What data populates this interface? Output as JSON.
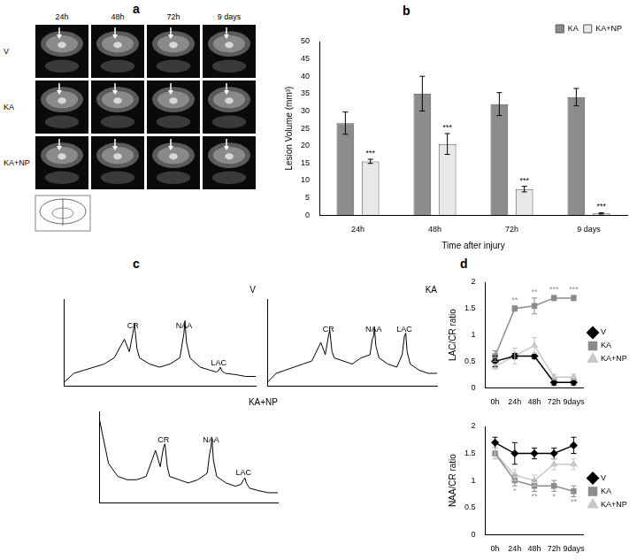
{
  "panel_labels": [
    "a",
    "b",
    "c",
    "d"
  ],
  "panel_a": {
    "columns": [
      "24h",
      "48h",
      "72h",
      "9 days"
    ],
    "rows": [
      "V",
      "KA",
      "KA+NP"
    ]
  },
  "chart_data": [
    {
      "type": "bar",
      "categories": [
        "24h",
        "48h",
        "72h",
        "9 days"
      ],
      "series": [
        {
          "name": "KA",
          "color": "#8c8c8c",
          "values": [
            26.5,
            35,
            32,
            34
          ],
          "errors": [
            3.2,
            5,
            3.3,
            2.5
          ]
        },
        {
          "name": "KA+NP",
          "color": "#e8e8e8",
          "values": [
            15.5,
            20.5,
            7.5,
            0.5
          ],
          "errors": [
            0.6,
            3,
            0.8,
            0.2
          ]
        }
      ],
      "x_label": "Time after injury",
      "y_label": "Lesion Volume (mm³)",
      "ylim": [
        0,
        50
      ],
      "yticks": [
        0,
        5,
        10,
        15,
        20,
        25,
        30,
        35,
        40,
        45,
        50
      ],
      "grid": false,
      "legend": "upper right",
      "annotations": [
        {
          "category": "24h",
          "series": "KA+NP",
          "text": "***",
          "position": "above"
        },
        {
          "category": "48h",
          "series": "KA+NP",
          "text": "***",
          "position": "above"
        },
        {
          "category": "72h",
          "series": "KA+NP",
          "text": "***",
          "position": "above"
        },
        {
          "category": "9 days",
          "series": "KA+NP",
          "text": "***",
          "position": "above"
        }
      ]
    },
    {
      "type": "line",
      "title": "V",
      "tick_labels": false,
      "x": [
        4.4,
        4.2,
        4.0,
        3.8,
        3.6,
        3.4,
        3.2,
        3.1,
        3.03,
        3.0,
        2.95,
        2.9,
        2.7,
        2.5,
        2.3,
        2.1,
        2.05,
        2.02,
        2.0,
        1.97,
        1.9,
        1.7,
        1.5,
        1.38,
        1.33,
        1.3,
        1.27,
        1.2,
        1.0,
        0.8,
        0.6
      ],
      "values": [
        0.05,
        0.2,
        0.25,
        0.3,
        0.35,
        0.45,
        0.75,
        0.55,
        0.85,
        1.0,
        0.6,
        0.45,
        0.35,
        0.3,
        0.35,
        0.45,
        0.7,
        0.85,
        1.05,
        0.7,
        0.45,
        0.3,
        0.25,
        0.22,
        0.25,
        0.3,
        0.24,
        0.2,
        0.18,
        0.15,
        0.15
      ],
      "color": "#000000",
      "xlim": [
        0.6,
        4.4
      ],
      "ylim": [
        0,
        1.4
      ],
      "grid": false,
      "annotations": [
        {
          "x": 3.03,
          "text": "CR"
        },
        {
          "x": 2.02,
          "text": "NAA"
        },
        {
          "x": 1.33,
          "text": "LAC"
        }
      ]
    },
    {
      "type": "line",
      "title": "KA",
      "tick_labels": false,
      "x": [
        4.4,
        4.2,
        4.0,
        3.8,
        3.6,
        3.4,
        3.2,
        3.1,
        3.03,
        3.0,
        2.95,
        2.9,
        2.7,
        2.5,
        2.3,
        2.1,
        2.05,
        2.02,
        2.0,
        1.97,
        1.9,
        1.7,
        1.5,
        1.38,
        1.33,
        1.3,
        1.27,
        1.2,
        1.0,
        0.8,
        0.6
      ],
      "values": [
        0.05,
        0.2,
        0.25,
        0.3,
        0.35,
        0.4,
        0.7,
        0.5,
        0.8,
        0.9,
        0.55,
        0.45,
        0.4,
        0.35,
        0.45,
        0.5,
        0.75,
        0.8,
        0.95,
        0.65,
        0.45,
        0.35,
        0.3,
        0.5,
        0.8,
        0.85,
        0.55,
        0.35,
        0.25,
        0.2,
        0.2
      ],
      "color": "#000000",
      "xlim": [
        0.6,
        4.4
      ],
      "ylim": [
        0,
        1.4
      ],
      "grid": false,
      "annotations": [
        {
          "x": 3.03,
          "text": "CR"
        },
        {
          "x": 2.02,
          "text": "NAA"
        },
        {
          "x": 1.33,
          "text": "LAC"
        }
      ]
    },
    {
      "type": "line",
      "title": "KA+NP",
      "tick_labels": false,
      "x": [
        4.4,
        4.2,
        4.0,
        3.8,
        3.6,
        3.4,
        3.2,
        3.1,
        3.03,
        3.0,
        2.95,
        2.9,
        2.7,
        2.5,
        2.3,
        2.1,
        2.05,
        2.02,
        2.0,
        1.97,
        1.9,
        1.7,
        1.5,
        1.38,
        1.33,
        1.3,
        1.27,
        1.2,
        1.0,
        0.8,
        0.6
      ],
      "values": [
        1.3,
        0.6,
        0.4,
        0.35,
        0.35,
        0.4,
        0.8,
        0.55,
        0.85,
        0.9,
        0.55,
        0.4,
        0.35,
        0.3,
        0.35,
        0.45,
        0.75,
        0.85,
        1.0,
        0.65,
        0.4,
        0.3,
        0.25,
        0.28,
        0.35,
        0.38,
        0.3,
        0.22,
        0.18,
        0.15,
        0.15
      ],
      "color": "#000000",
      "xlim": [
        0.6,
        4.4
      ],
      "ylim": [
        0,
        1.4
      ],
      "grid": false,
      "annotations": [
        {
          "x": 3.03,
          "text": "CR"
        },
        {
          "x": 2.02,
          "text": "NAA"
        },
        {
          "x": 1.33,
          "text": "LAC"
        }
      ]
    },
    {
      "type": "line",
      "categories": [
        "0h",
        "24h",
        "48h",
        "72h",
        "9days"
      ],
      "series": [
        {
          "name": "V",
          "color": "#000000",
          "marker": "diamond",
          "values": [
            0.5,
            0.6,
            0.6,
            0.1,
            0.1
          ],
          "errors": [
            0.1,
            0.05,
            0.05,
            0.05,
            0.05
          ]
        },
        {
          "name": "KA",
          "color": "#8c8c8c",
          "marker": "square",
          "values": [
            0.6,
            1.5,
            1.55,
            1.7,
            1.7
          ],
          "errors": [
            0.1,
            0.05,
            0.15,
            0.05,
            0.05
          ]
        },
        {
          "name": "KA+NP",
          "color": "#c8c8c8",
          "marker": "triangle",
          "values": [
            0.4,
            0.6,
            0.8,
            0.2,
            0.2
          ],
          "errors": [
            0.05,
            0.15,
            0.15,
            0.05,
            0.05
          ]
        }
      ],
      "y_label": "LAC/CR ratio",
      "ylim": [
        0,
        2
      ],
      "yticks": [
        0,
        0.5,
        1,
        1.5,
        2
      ],
      "grid": false,
      "legend": "right",
      "annotations": [
        {
          "category": "24h",
          "series": "KA",
          "text": "**",
          "position": "above"
        },
        {
          "category": "48h",
          "series": "KA",
          "text": "**",
          "position": "above"
        },
        {
          "category": "72h",
          "series": "KA",
          "text": "***",
          "position": "above"
        },
        {
          "category": "9days",
          "series": "KA",
          "text": "***",
          "position": "above"
        }
      ]
    },
    {
      "type": "line",
      "categories": [
        "0h",
        "24h",
        "48h",
        "72h",
        "9days"
      ],
      "series": [
        {
          "name": "V",
          "color": "#000000",
          "marker": "diamond",
          "values": [
            1.7,
            1.5,
            1.5,
            1.5,
            1.65
          ],
          "errors": [
            0.1,
            0.2,
            0.1,
            0.1,
            0.15
          ]
        },
        {
          "name": "KA",
          "color": "#8c8c8c",
          "marker": "square",
          "values": [
            1.5,
            1.0,
            0.9,
            0.9,
            0.8
          ],
          "errors": [
            0.1,
            0.1,
            0.1,
            0.1,
            0.1
          ]
        },
        {
          "name": "KA+NP",
          "color": "#c8c8c8",
          "marker": "triangle",
          "values": [
            1.5,
            1.1,
            1.0,
            1.3,
            1.3
          ],
          "errors": [
            0.1,
            0.1,
            0.1,
            0.1,
            0.1
          ]
        }
      ],
      "y_label": "NAA/CR ratio",
      "ylim": [
        0,
        2
      ],
      "yticks": [
        0,
        0.5,
        1,
        1.5,
        2
      ],
      "grid": false,
      "legend": "right",
      "annotations": [
        {
          "category": "24h",
          "series": "KA",
          "text": "*",
          "position": "below"
        },
        {
          "category": "48h",
          "series": "KA",
          "text": "**",
          "position": "below"
        },
        {
          "category": "72h",
          "series": "KA",
          "text": "*",
          "position": "below"
        },
        {
          "category": "9days",
          "series": "KA",
          "text": "**",
          "position": "below"
        }
      ]
    }
  ]
}
